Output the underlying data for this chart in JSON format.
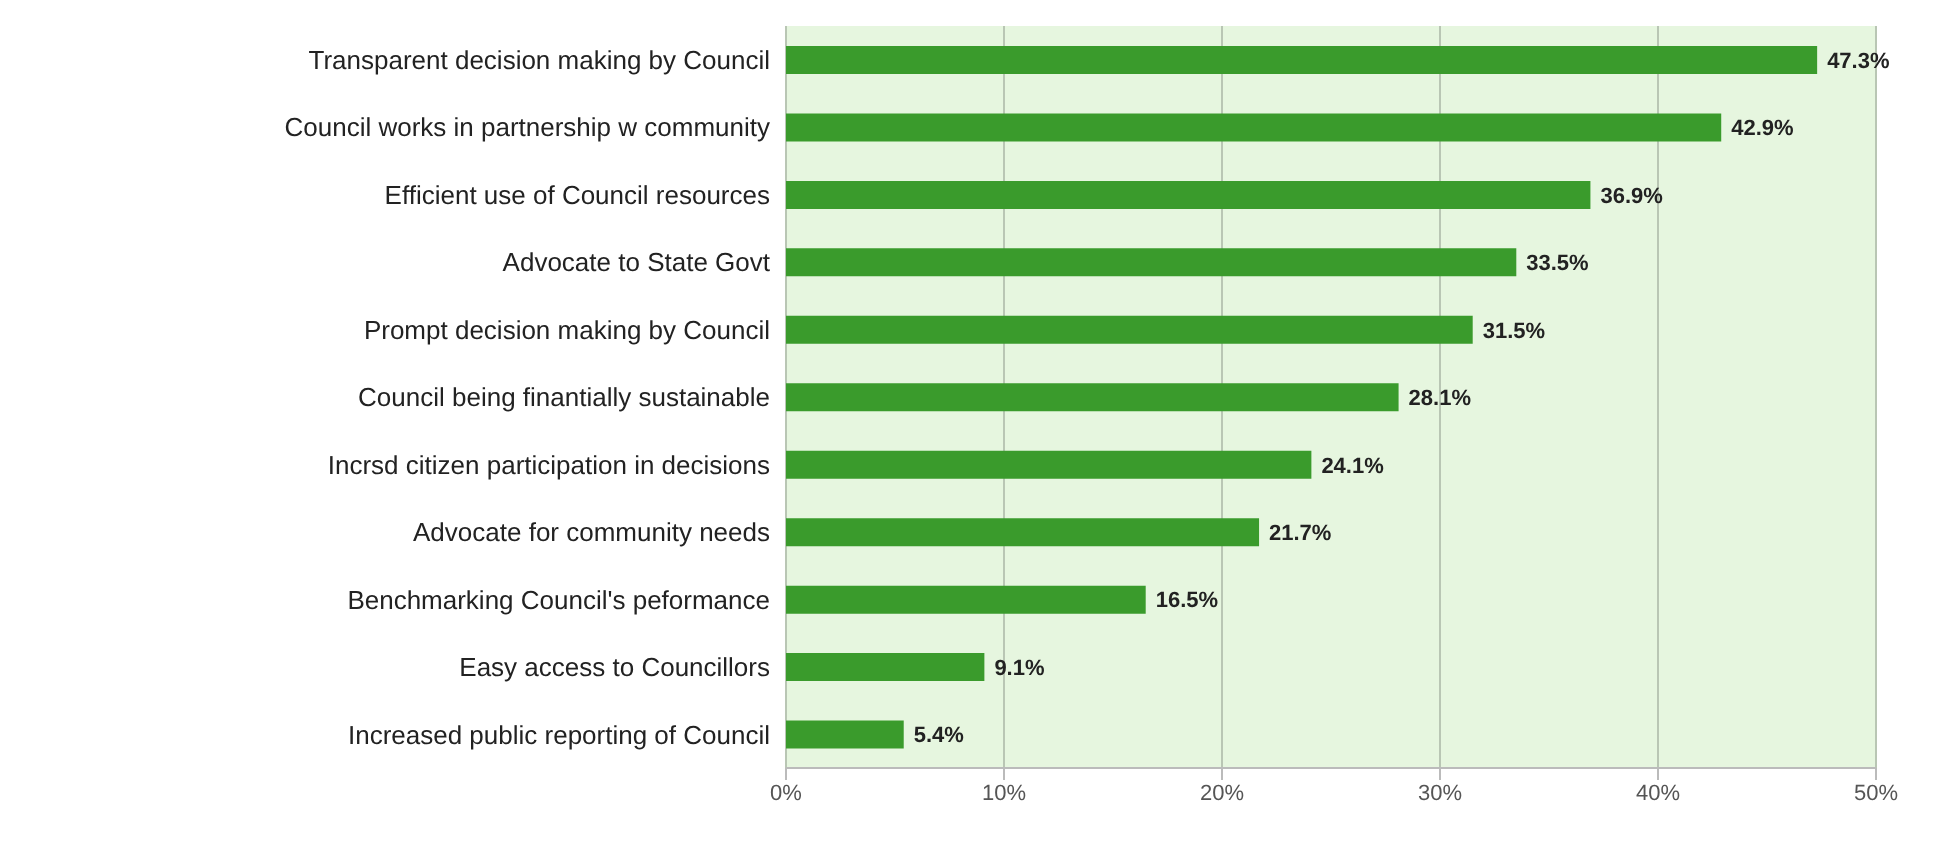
{
  "chart_data": {
    "type": "bar",
    "orientation": "horizontal",
    "categories": [
      "Transparent decision making by Council",
      "Council works in partnership w community",
      "Efficient use of Council resources",
      "Advocate to State Govt",
      "Prompt decision making by Council",
      "Council being finantially sustainable",
      "Incrsd citizen participation in decisions",
      "Advocate for community needs",
      "Benchmarking Council's peformance",
      "Easy access to Councillors",
      "Increased public reporting of Council"
    ],
    "values": [
      47.3,
      42.9,
      36.9,
      33.5,
      31.5,
      28.1,
      24.1,
      21.7,
      16.5,
      9.1,
      5.4
    ],
    "value_labels": [
      "47.3%",
      "42.9%",
      "36.9%",
      "33.5%",
      "31.5%",
      "28.1%",
      "24.1%",
      "21.7%",
      "16.5%",
      "9.1%",
      "5.4%"
    ],
    "color": "#3a9b2c",
    "xlim": [
      0,
      50
    ],
    "xticks": [
      {
        "value": 0,
        "label": "0%"
      },
      {
        "value": 10,
        "label": "10%"
      },
      {
        "value": 20,
        "label": "20%"
      },
      {
        "value": 30,
        "label": "30%"
      },
      {
        "value": 40,
        "label": "40%"
      },
      {
        "value": 50,
        "label": "50%"
      }
    ],
    "grid": "x"
  }
}
